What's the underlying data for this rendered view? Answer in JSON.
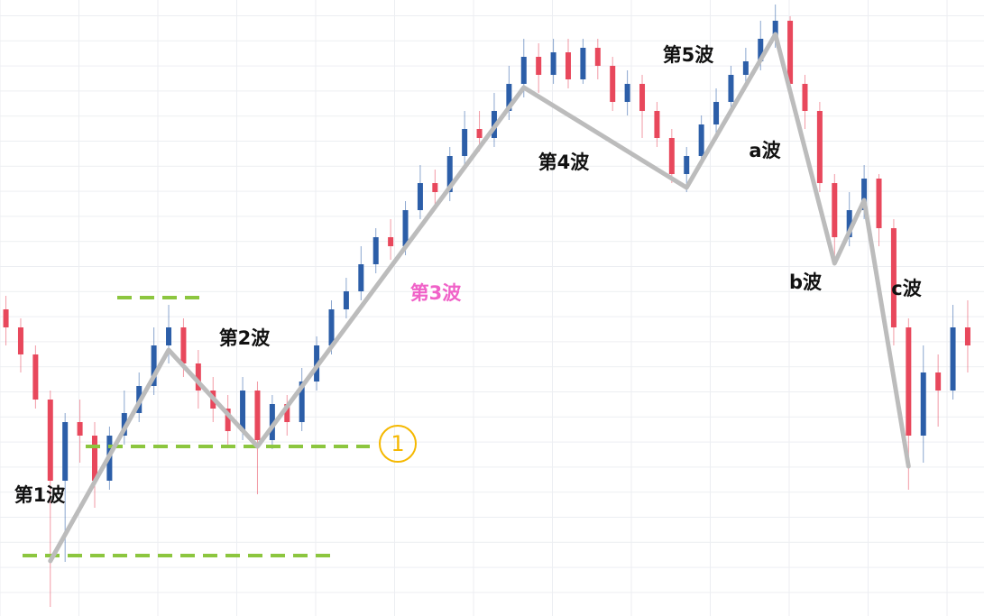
{
  "chart_data": {
    "type": "candlestick",
    "ylim": [
      0,
      683
    ],
    "xlim": [
      -0.4,
      66.1
    ],
    "up_color": "#2c5ea8",
    "down_color": "#e8485c",
    "series": [
      {
        "ohlc": [
          [
            340,
            355,
            300,
            320
          ],
          [
            320,
            330,
            270,
            290
          ],
          [
            290,
            300,
            230,
            240
          ],
          [
            240,
            250,
            10,
            150
          ],
          [
            150,
            225,
            60,
            215
          ],
          [
            215,
            240,
            170,
            200
          ],
          [
            200,
            215,
            120,
            150
          ],
          [
            150,
            210,
            140,
            200
          ],
          [
            200,
            250,
            190,
            225
          ],
          [
            225,
            270,
            215,
            255
          ],
          [
            255,
            320,
            245,
            300
          ],
          [
            300,
            345,
            280,
            320
          ],
          [
            320,
            330,
            265,
            280
          ],
          [
            280,
            295,
            230,
            250
          ],
          [
            250,
            265,
            215,
            230
          ],
          [
            230,
            245,
            190,
            205
          ],
          [
            205,
            265,
            195,
            250
          ],
          [
            250,
            260,
            135,
            195
          ],
          [
            195,
            245,
            185,
            235
          ],
          [
            235,
            245,
            200,
            215
          ],
          [
            215,
            275,
            205,
            260
          ],
          [
            260,
            310,
            250,
            300
          ],
          [
            300,
            350,
            290,
            340
          ],
          [
            340,
            375,
            330,
            360
          ],
          [
            360,
            410,
            350,
            390
          ],
          [
            390,
            430,
            380,
            420
          ],
          [
            420,
            440,
            395,
            410
          ],
          [
            410,
            460,
            400,
            450
          ],
          [
            450,
            500,
            440,
            480
          ],
          [
            480,
            495,
            455,
            470
          ],
          [
            470,
            520,
            460,
            510
          ],
          [
            510,
            560,
            500,
            540
          ],
          [
            540,
            560,
            515,
            530
          ],
          [
            530,
            580,
            520,
            560
          ],
          [
            560,
            610,
            550,
            590
          ],
          [
            590,
            640,
            575,
            620
          ],
          [
            620,
            635,
            580,
            600
          ],
          [
            600,
            640,
            590,
            625
          ],
          [
            625,
            640,
            585,
            595
          ],
          [
            595,
            640,
            590,
            630
          ],
          [
            630,
            640,
            595,
            610
          ],
          [
            610,
            620,
            560,
            570
          ],
          [
            570,
            605,
            555,
            590
          ],
          [
            590,
            600,
            530,
            560
          ],
          [
            560,
            570,
            520,
            530
          ],
          [
            530,
            540,
            480,
            490
          ],
          [
            490,
            520,
            470,
            510
          ],
          [
            510,
            555,
            500,
            545
          ],
          [
            545,
            585,
            535,
            570
          ],
          [
            570,
            610,
            560,
            600
          ],
          [
            600,
            630,
            590,
            615
          ],
          [
            615,
            660,
            605,
            640
          ],
          [
            640,
            678,
            630,
            660
          ],
          [
            660,
            665,
            580,
            590
          ],
          [
            590,
            600,
            540,
            560
          ],
          [
            560,
            570,
            470,
            480
          ],
          [
            480,
            490,
            390,
            420
          ],
          [
            420,
            470,
            410,
            450
          ],
          [
            450,
            500,
            440,
            485
          ],
          [
            485,
            490,
            410,
            430
          ],
          [
            430,
            440,
            300,
            320
          ],
          [
            320,
            330,
            140,
            200
          ],
          [
            200,
            300,
            170,
            270
          ],
          [
            270,
            290,
            210,
            250
          ],
          [
            250,
            345,
            240,
            320
          ],
          [
            320,
            350,
            270,
            300
          ]
        ]
      }
    ],
    "wave": {
      "color": "#bcbcbc",
      "x": [
        3,
        11,
        17,
        35,
        46,
        52,
        56,
        58,
        61
      ],
      "y": [
        61,
        295,
        188,
        586,
        475,
        645,
        391,
        461,
        166
      ]
    },
    "levels": {
      "color": "#8cc63f",
      "values": [
        67,
        353,
        188
      ]
    },
    "annotations": [
      "第1波",
      "第2波",
      "第3波",
      "第4波",
      "第5波",
      "a波",
      "b波",
      "c波",
      "1"
    ]
  }
}
